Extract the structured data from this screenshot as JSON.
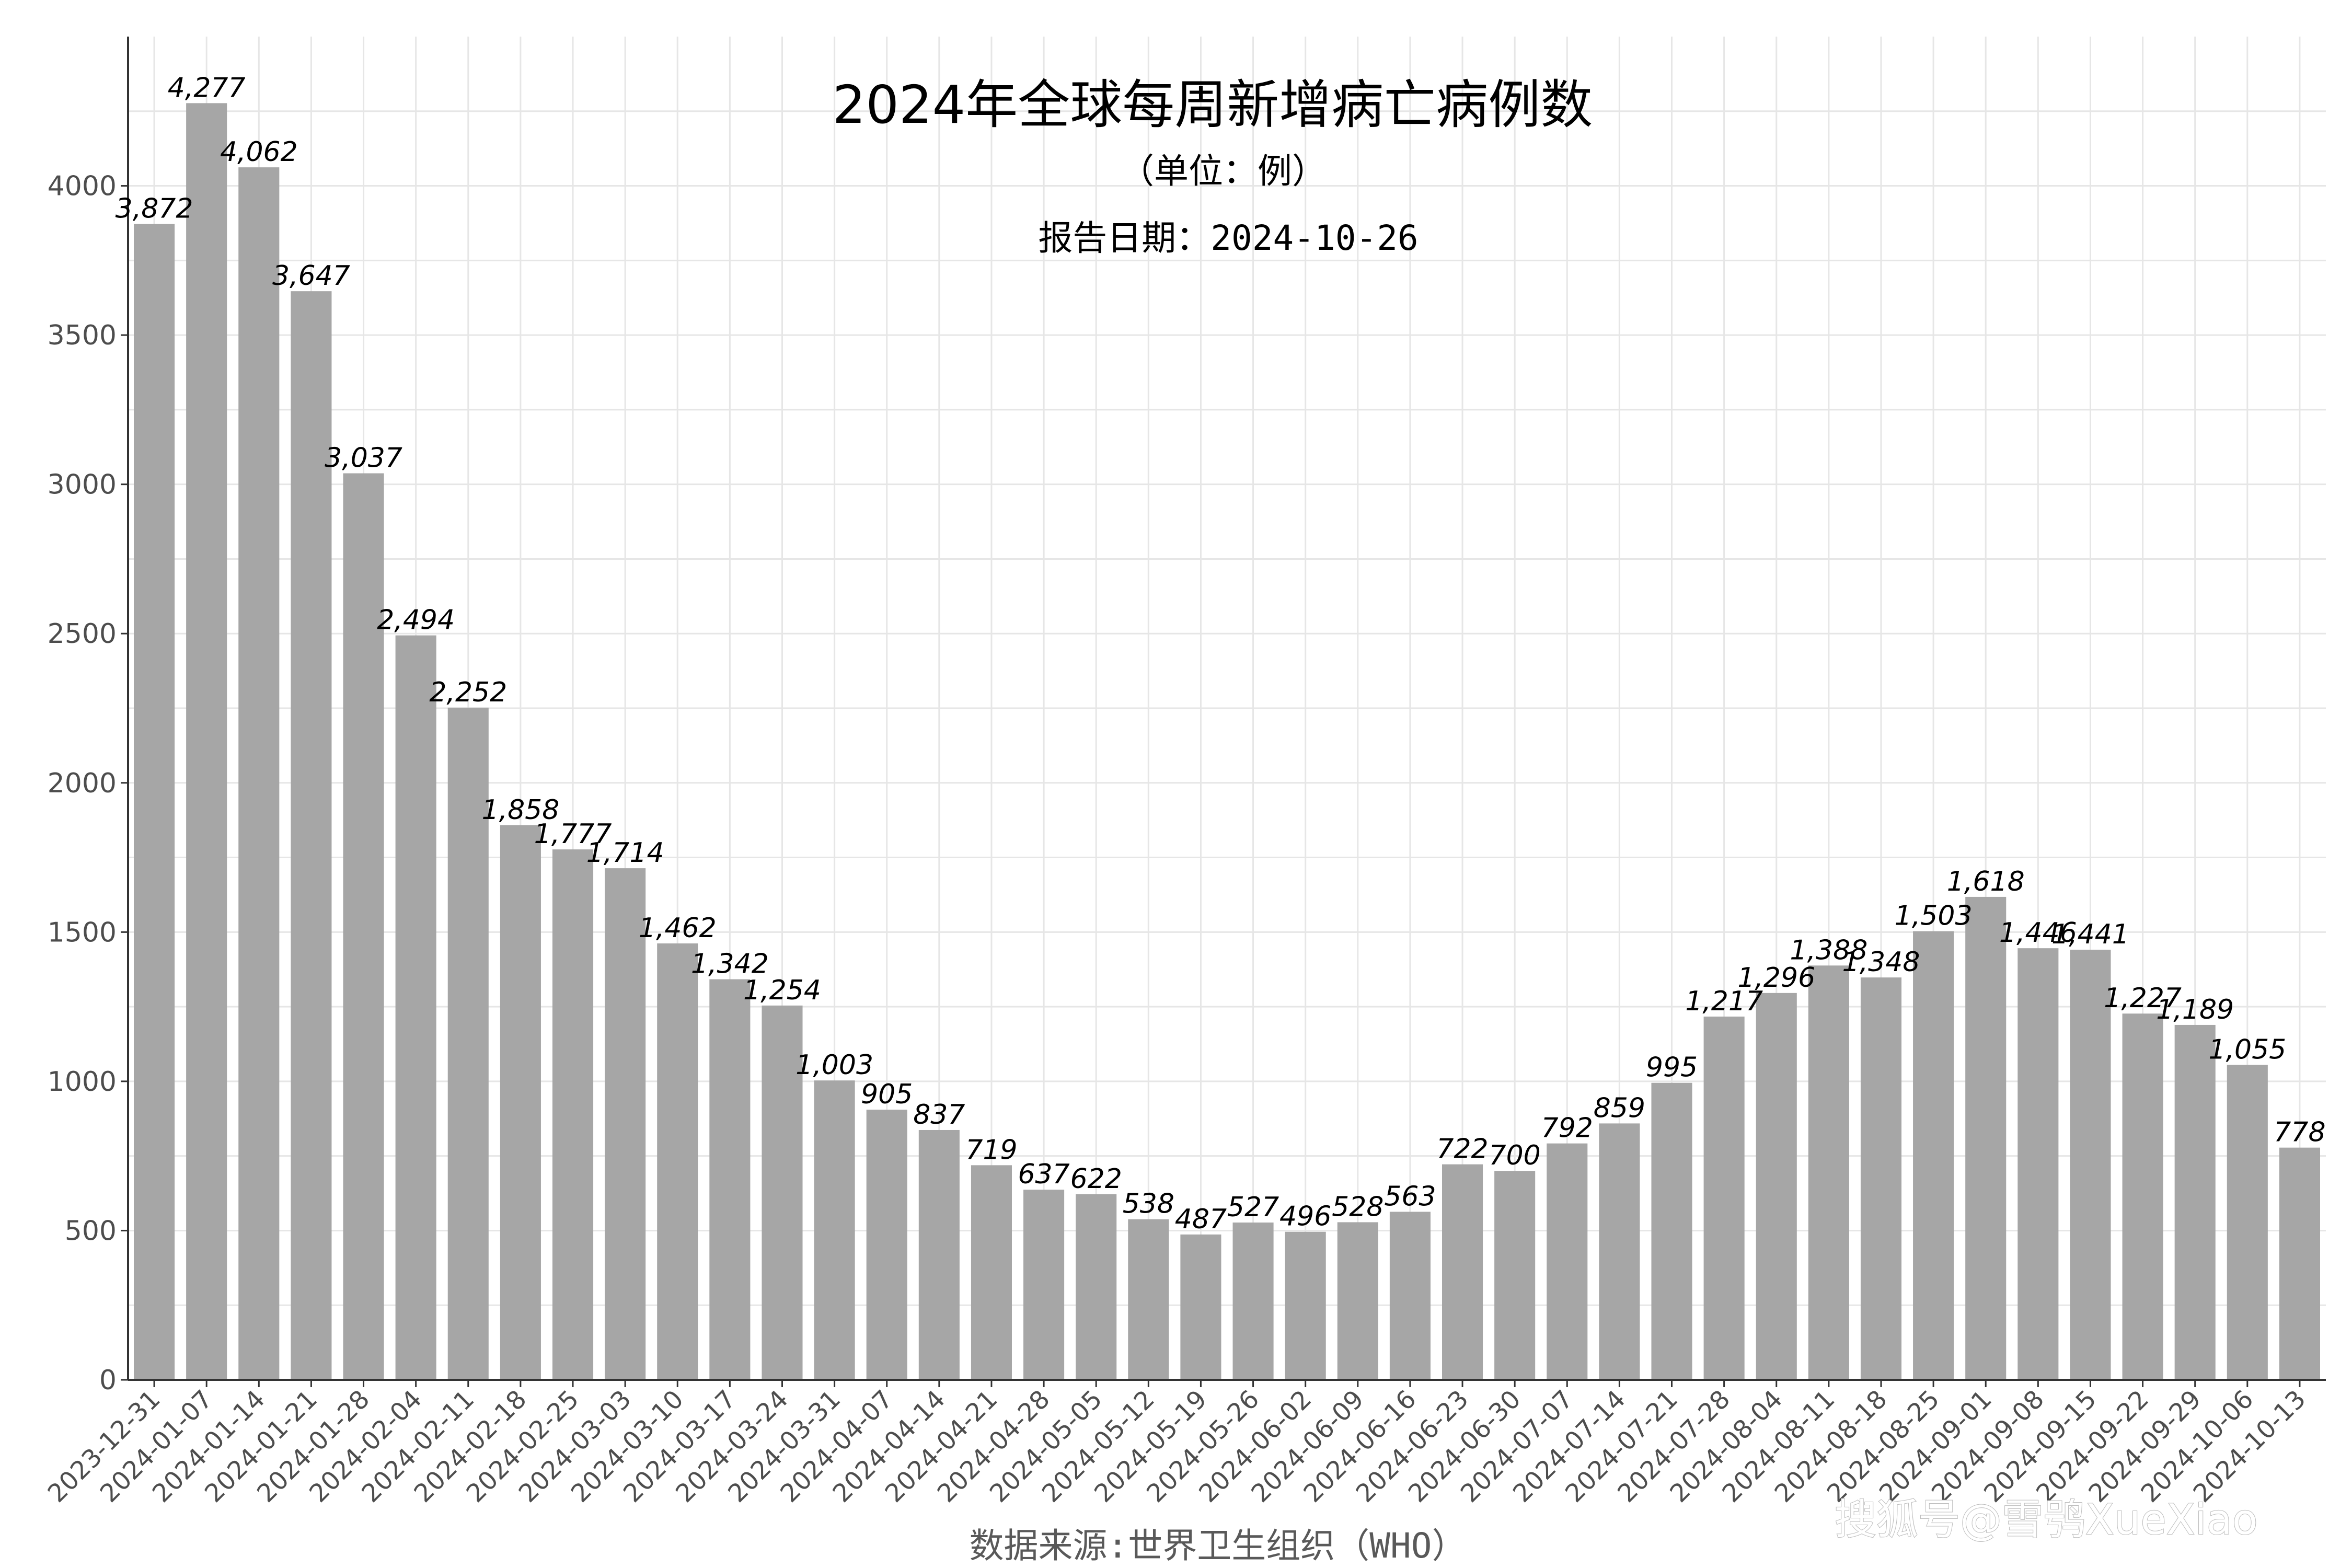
{
  "chart_data": {
    "type": "bar",
    "title": "2024年全球每周新增病亡病例数",
    "subtitle": "（单位：例）",
    "report_date": "报告日期：2024-10-26",
    "caption": "数据来源:世界卫生组织（WHO）",
    "watermark": "搜狐号@雪鸮XueXiao",
    "xlabel": "",
    "ylabel": "",
    "ylim": [
      0,
      4500
    ],
    "yticks": [
      0,
      500,
      1000,
      1500,
      2000,
      2500,
      3000,
      3500,
      4000
    ],
    "grid": true,
    "bar_color": "#a6a6a6",
    "categories": [
      "2023-12-31",
      "2024-01-07",
      "2024-01-14",
      "2024-01-21",
      "2024-01-28",
      "2024-02-04",
      "2024-02-11",
      "2024-02-18",
      "2024-02-25",
      "2024-03-03",
      "2024-03-10",
      "2024-03-17",
      "2024-03-24",
      "2024-03-31",
      "2024-04-07",
      "2024-04-14",
      "2024-04-21",
      "2024-04-28",
      "2024-05-05",
      "2024-05-12",
      "2024-05-19",
      "2024-05-26",
      "2024-06-02",
      "2024-06-09",
      "2024-06-16",
      "2024-06-23",
      "2024-06-30",
      "2024-07-07",
      "2024-07-14",
      "2024-07-21",
      "2024-07-28",
      "2024-08-04",
      "2024-08-11",
      "2024-08-18",
      "2024-08-25",
      "2024-09-01",
      "2024-09-08",
      "2024-09-15",
      "2024-09-22",
      "2024-09-29",
      "2024-10-06",
      "2024-10-13"
    ],
    "values": [
      3872,
      4277,
      4062,
      3647,
      3037,
      2494,
      2252,
      1858,
      1777,
      1714,
      1462,
      1342,
      1254,
      1003,
      905,
      837,
      719,
      637,
      622,
      538,
      487,
      527,
      496,
      528,
      563,
      722,
      700,
      792,
      859,
      995,
      1217,
      1296,
      1388,
      1348,
      1503,
      1618,
      1446,
      1441,
      1227,
      1189,
      1055,
      778
    ],
    "value_labels": [
      "3,872",
      "4,277",
      "4,062",
      "3,647",
      "3,037",
      "2,494",
      "2,252",
      "1,858",
      "1,777",
      "1,714",
      "1,462",
      "1,342",
      "1,254",
      "1,003",
      "905",
      "837",
      "719",
      "637",
      "622",
      "538",
      "487",
      "527",
      "496",
      "528",
      "563",
      "722",
      "700",
      "792",
      "859",
      "995",
      "1,217",
      "1,296",
      "1,388",
      "1,348",
      "1,503",
      "1,618",
      "1,446",
      "1,441",
      "1,227",
      "1,189",
      "1,055",
      "778"
    ]
  }
}
